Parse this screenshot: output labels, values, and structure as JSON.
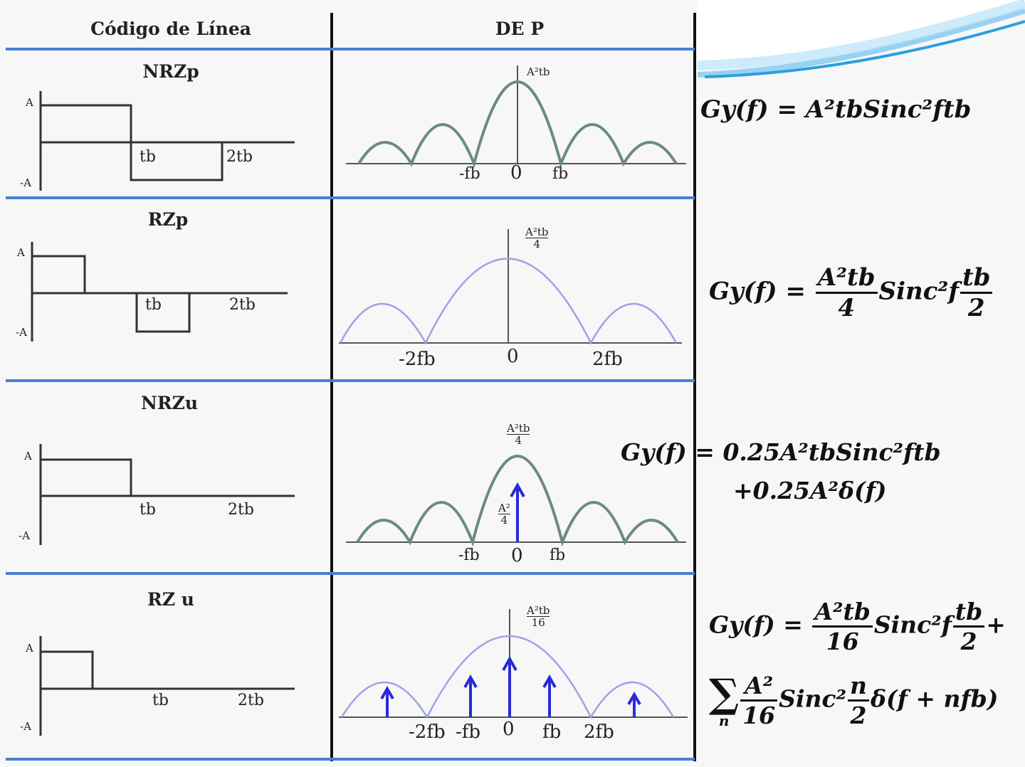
{
  "table": {
    "header_left": "Código de Línea",
    "header_right": "DE P"
  },
  "rows": [
    {
      "title": "NRZp",
      "wave": {
        "amp_pos": "A",
        "amp_neg": "-A",
        "t1": "tb",
        "t2": "2tb"
      },
      "psd": {
        "peak": "A²tb",
        "neg": "-fb",
        "zero": "0",
        "pos": "fb"
      },
      "formula": {
        "lhs": "Gy(f)",
        "eq": "=",
        "rhs": "A²tbSinc²ftb"
      }
    },
    {
      "title": "RZp",
      "wave": {
        "amp_pos": "A",
        "amp_neg": "-A",
        "t1": "tb",
        "t2": "2tb"
      },
      "psd": {
        "peak_num": "A²tb",
        "peak_den": "4",
        "neg": "-2fb",
        "zero": "0",
        "pos": "2fb"
      },
      "formula": {
        "lhs": "Gy(f)",
        "eq": "=",
        "frac_num": "A²tb",
        "frac_den": "4",
        "mid": "Sinc²f",
        "frac2_num": "tb",
        "frac2_den": "2"
      }
    },
    {
      "title": "NRZu",
      "wave": {
        "amp_pos": "A",
        "amp_neg": "-A",
        "t1": "tb",
        "t2": "2tb"
      },
      "psd": {
        "peak_num": "A²tb",
        "peak_den": "4",
        "impulse_num": "A²",
        "impulse_den": "4",
        "neg": "-fb",
        "zero": "0",
        "pos": "fb"
      },
      "formula": {
        "lhs": "Gy(f)",
        "eq": "=",
        "rhs": "0.25A²tbSinc²ftb",
        "line2": "+0.25A²δ(f)"
      }
    },
    {
      "title": "RZ u",
      "wave": {
        "amp_pos": "A",
        "amp_neg": "-A",
        "t1": "tb",
        "t2": "2tb"
      },
      "psd": {
        "peak_num": "A²tb",
        "peak_den": "16",
        "neg2": "-2fb",
        "neg1": "-fb",
        "zero": "0",
        "pos1": "fb",
        "pos2": "2fb"
      },
      "formula": {
        "lhs": "Gy(f)",
        "eq": "=",
        "frac_num": "A²tb",
        "frac_den": "16",
        "mid": "Sinc²f",
        "frac2_num": "tb",
        "frac2_den": "2",
        "plus": "+",
        "sum": "∑",
        "sum_sub": "n",
        "frac3_num": "A²",
        "frac3_den": "16",
        "mid2": "Sinc²",
        "frac4_num": "n",
        "frac4_den": "2",
        "tail": "δ(f + nfb)"
      }
    }
  ],
  "colors": {
    "row_rule": "#4a7fd0",
    "column_rule": "#111111",
    "nrz_curve": "#6b8c7a",
    "rz_curve": "#9ea2e4",
    "impulse": "#2a2ad8",
    "deco_wave": "#2a9fe0"
  }
}
